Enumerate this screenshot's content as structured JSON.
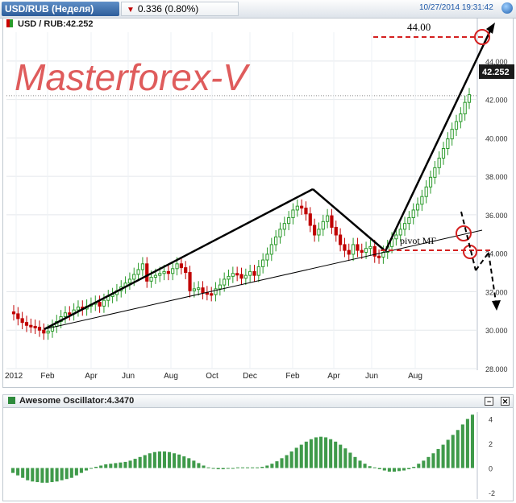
{
  "header": {
    "symbol_tab": "USD/RUB (Неделя)",
    "change": "0.336 (0.80%)",
    "timestamp": "10/27/2014 19:31:42"
  },
  "chart_header": {
    "label": "USD / RUB:42.252"
  },
  "watermark": "Masterforex-V",
  "oscillator": {
    "label": "Awesome Oscillator:4.3470"
  },
  "colors": {
    "bull": "#2a9a2a",
    "bear": "#c00000",
    "watermark": "#d94040",
    "target_line": "#d42020"
  },
  "chart_data": [
    {
      "type": "candlestick",
      "title": "USD / RUB:42.252",
      "x_tick_labels": [
        "2012",
        "Feb",
        "Apr",
        "Jun",
        "Aug",
        "Oct",
        "Dec",
        "Feb",
        "Apr",
        "Jun",
        "Aug"
      ],
      "y_ticks": [
        "28.000",
        "30.000",
        "32.000",
        "34.000",
        "36.000",
        "38.000",
        "40.000",
        "42.000",
        "44.000"
      ],
      "ylim": [
        28,
        45.5
      ],
      "last_price": "42.252",
      "annotations": {
        "target_label": "44.00",
        "pivot_label": "pivot MF"
      },
      "ohlc_approx_close": [
        30.85,
        30.6,
        30.4,
        30.25,
        30.2,
        30.15,
        30.0,
        29.85,
        29.95,
        30.2,
        30.45,
        30.7,
        30.9,
        30.85,
        31.05,
        31.2,
        31.1,
        31.25,
        31.35,
        31.45,
        31.25,
        31.55,
        31.75,
        31.85,
        32.05,
        32.25,
        32.45,
        32.65,
        32.9,
        33.15,
        33.45,
        32.55,
        32.75,
        32.85,
        32.95,
        33.05,
        32.95,
        33.2,
        33.45,
        33.25,
        33.0,
        32.05,
        32.15,
        32.2,
        31.95,
        31.9,
        31.85,
        32.15,
        32.35,
        32.65,
        32.8,
        32.95,
        32.9,
        32.7,
        32.85,
        33.05,
        32.85,
        33.3,
        33.65,
        33.95,
        34.45,
        34.85,
        35.25,
        35.55,
        35.85,
        36.25,
        36.45,
        36.35,
        36.05,
        35.45,
        34.95,
        35.25,
        35.65,
        35.95,
        35.35,
        34.95,
        34.45,
        34.15,
        33.95,
        34.45,
        34.15,
        34.05,
        34.25,
        34.35,
        33.85,
        33.8,
        34.05,
        34.35,
        34.75,
        34.95,
        35.25,
        35.55,
        35.85,
        36.25,
        36.55,
        36.95,
        37.45,
        37.95,
        38.45,
        38.95,
        39.45,
        39.95,
        40.45,
        40.85,
        41.25,
        41.85,
        42.25
      ]
    },
    {
      "type": "bar",
      "title": "Awesome Oscillator:4.3470",
      "y_ticks": [
        "4",
        "2",
        "0",
        "-2"
      ],
      "ylim": [
        -2,
        4.3
      ],
      "values_approx": [
        -0.4,
        -0.6,
        -0.8,
        -1.0,
        -1.1,
        -1.15,
        -1.2,
        -1.2,
        -1.15,
        -1.1,
        -1.0,
        -0.9,
        -0.8,
        -0.6,
        -0.4,
        -0.2,
        0.0,
        0.1,
        0.2,
        0.3,
        0.35,
        0.4,
        0.45,
        0.5,
        0.6,
        0.75,
        0.9,
        1.05,
        1.2,
        1.3,
        1.35,
        1.35,
        1.3,
        1.2,
        1.1,
        0.95,
        0.8,
        0.6,
        0.4,
        0.2,
        0.05,
        -0.05,
        -0.1,
        -0.1,
        -0.05,
        0.0,
        0.05,
        0.05,
        0.05,
        0.05,
        0.05,
        0.1,
        0.2,
        0.35,
        0.55,
        0.8,
        1.05,
        1.35,
        1.65,
        1.9,
        2.15,
        2.35,
        2.5,
        2.55,
        2.5,
        2.35,
        2.15,
        1.9,
        1.6,
        1.25,
        0.9,
        0.6,
        0.35,
        0.15,
        0.05,
        -0.1,
        -0.2,
        -0.3,
        -0.3,
        -0.25,
        -0.2,
        -0.1,
        0.1,
        0.35,
        0.6,
        0.9,
        1.2,
        1.55,
        1.9,
        2.3,
        2.7,
        3.1,
        3.55,
        4.0,
        4.35
      ]
    }
  ]
}
